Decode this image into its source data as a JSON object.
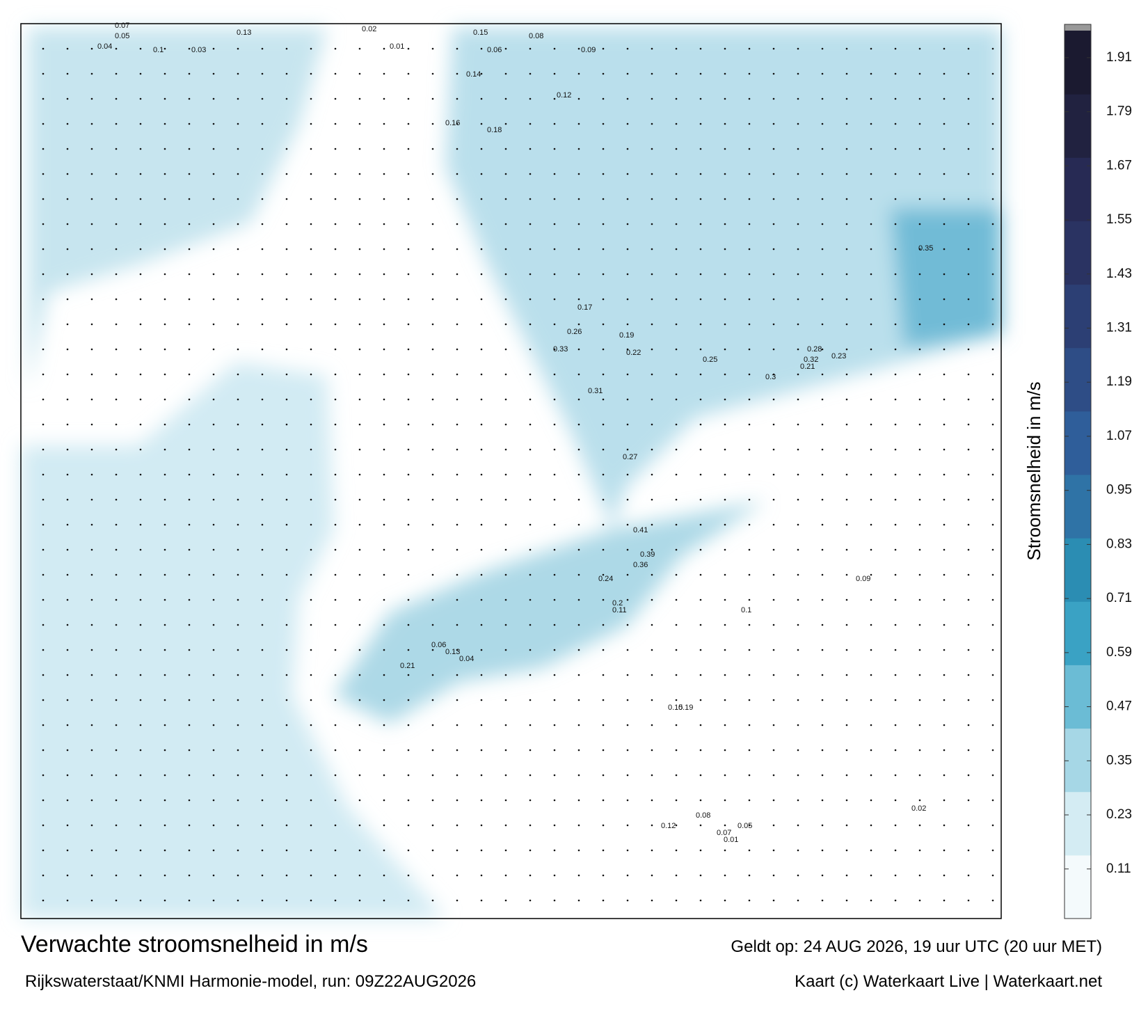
{
  "title": "Verwachte stroomsnelheid in m/s",
  "subtitle": "Rijkswaterstaat/KNMI Harmonie-model, run: 09Z22AUG2026",
  "valid": "Geldt op: 24 AUG 2026, 19 uur UTC (20 uur MET)",
  "credit": "Kaart (c) Waterkaart Live | Waterkaart.net",
  "colorbar": {
    "label": "Stroomsnelheid in m/s",
    "lim": [
      0,
      1.97
    ],
    "ticks": [
      0.11,
      0.23,
      0.35,
      0.47,
      0.59,
      0.71,
      0.83,
      0.95,
      1.07,
      1.19,
      1.31,
      1.43,
      1.55,
      1.67,
      1.79,
      1.91
    ],
    "colors": [
      "#f4fafc",
      "#d4ecf3",
      "#a6d7e6",
      "#6bbcd5",
      "#3aa2c4",
      "#2b8db3",
      "#2f73a6",
      "#2f5e9a",
      "#2e4d86",
      "#2c3f74",
      "#2a3362",
      "#272a54",
      "#212240",
      "#1b1a30"
    ]
  },
  "map_labels": [
    0.07,
    0.05,
    0.04,
    0.1,
    0.03,
    0.13,
    0.15,
    0.06,
    0.08,
    0.09,
    0.12,
    0.02,
    0.01,
    0.14,
    0.16,
    0.18,
    0.17,
    0.19,
    0.22,
    0.25,
    0.26,
    0.33,
    0.31,
    0.3,
    0.27,
    0.23,
    0.21,
    0.28,
    0.32,
    0.41,
    0.39,
    0.36,
    0.24,
    0.2,
    0.11,
    0.35,
    0.01,
    0.05,
    0.07,
    0.08,
    0.12,
    0.15,
    0.19,
    0.21,
    0.06,
    0.04,
    0.13,
    0.1,
    0.09,
    0.02
  ]
}
